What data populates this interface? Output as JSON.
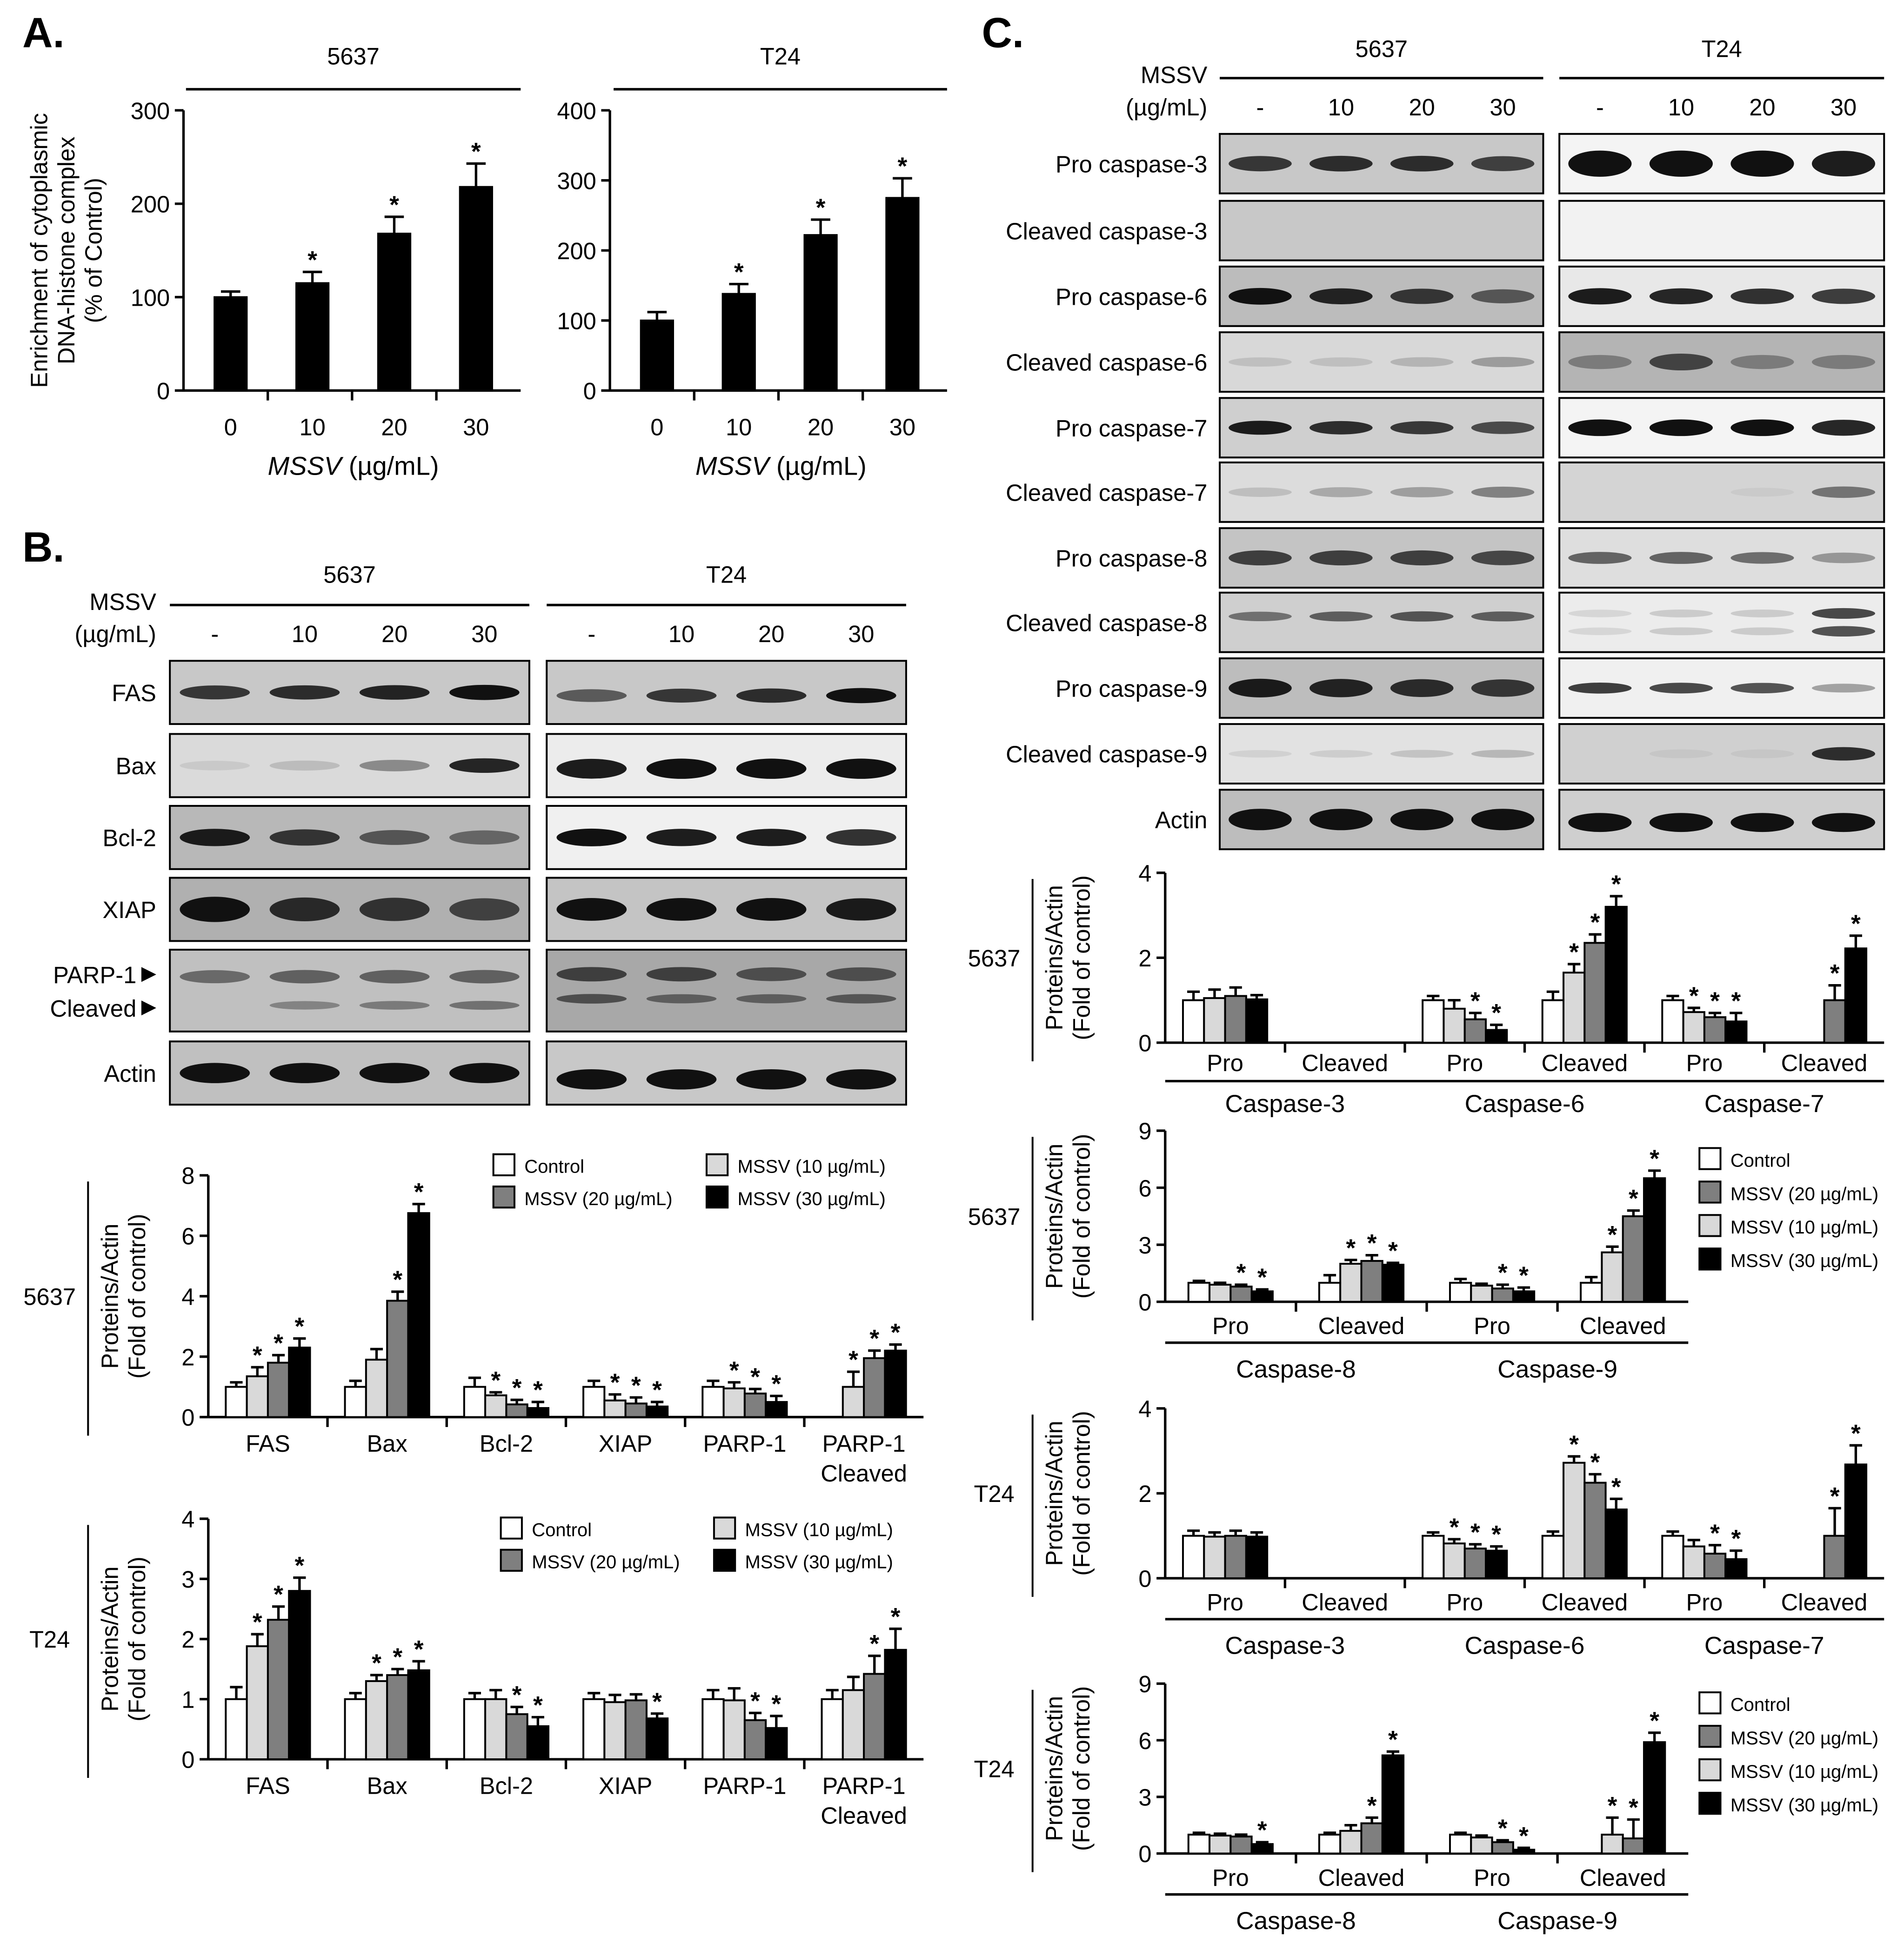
{
  "panels": {
    "a": "A.",
    "b": "B.",
    "c": "C."
  },
  "blot_text": {
    "mssv_label": "MSSV",
    "unit_label": "(µg/mL)",
    "b": {
      "lines": [
        "5637",
        "T24"
      ],
      "doses": [
        "-",
        "10",
        "20",
        "30"
      ],
      "rows": [
        "FAS",
        "Bax",
        "Bcl-2",
        "XIAP",
        "PARP-1",
        "Cleaved",
        "Actin"
      ]
    },
    "c": {
      "lines": [
        "5637",
        "T24"
      ],
      "doses": [
        "-",
        "10",
        "20",
        "30"
      ],
      "rows": [
        "Pro caspase-3",
        "Cleaved caspase-3",
        "Pro caspase-6",
        "Cleaved caspase-6",
        "Pro caspase-7",
        "Cleaved caspase-7",
        "Pro caspase-8",
        "Cleaved caspase-8",
        "Pro caspase-9",
        "Cleaved caspase-9",
        "Actin"
      ]
    }
  },
  "colors": {
    "control": "#ffffff",
    "mssv10": "#d9d9d9",
    "mssv20": "#7f7f7f",
    "mssv30": "#000000"
  },
  "chart_data": [
    {
      "id": "A1",
      "type": "bar",
      "title": "5637",
      "categories": [
        "0",
        "10",
        "20",
        "30"
      ],
      "values": [
        100,
        115,
        168,
        218
      ],
      "errors": [
        6,
        12,
        18,
        25
      ],
      "significant": [
        false,
        true,
        true,
        true
      ],
      "ylim": [
        0,
        300
      ],
      "yticks": [
        0,
        100,
        200,
        300
      ],
      "ylabel": [
        "Enrichment of cytoplasmic",
        "DNA-histone complex",
        "(% of Control)"
      ],
      "xlabel_italic": "MSSV",
      "xlabel_rest": " (µg/mL)"
    },
    {
      "id": "A2",
      "type": "bar",
      "title": "T24",
      "categories": [
        "0",
        "10",
        "20",
        "30"
      ],
      "values": [
        100,
        138,
        222,
        275
      ],
      "errors": [
        12,
        14,
        22,
        28
      ],
      "significant": [
        false,
        true,
        true,
        true
      ],
      "ylim": [
        0,
        400
      ],
      "yticks": [
        0,
        100,
        200,
        300,
        400
      ],
      "xlabel_italic": "MSSV",
      "xlabel_rest": " (µg/mL)"
    },
    {
      "id": "B1",
      "type": "bar",
      "row_label": "5637",
      "ylabel": [
        "Proteins/Actin",
        "(Fold of control)"
      ],
      "ylim": [
        0,
        8
      ],
      "yticks": [
        0,
        2,
        4,
        6,
        8
      ],
      "categories": [
        [
          "FAS"
        ],
        [
          "Bax"
        ],
        [
          "Bcl-2"
        ],
        [
          "XIAP"
        ],
        [
          "PARP-1"
        ],
        [
          "PARP-1",
          "Cleaved"
        ]
      ],
      "legend": [
        {
          "key": "control",
          "label": "Control"
        },
        {
          "key": "mssv10",
          "label": "MSSV (10 µg/mL)"
        },
        {
          "key": "mssv20",
          "label": "MSSV (20 µg/mL)"
        },
        {
          "key": "mssv30",
          "label": "MSSV (30 µg/mL)"
        }
      ],
      "series": [
        {
          "key": "control",
          "values": [
            1,
            1,
            1,
            1,
            1,
            null
          ],
          "errors": [
            0.15,
            0.2,
            0.3,
            0.2,
            0.2,
            0
          ],
          "stars": [
            0,
            0,
            0,
            0,
            0,
            0
          ]
        },
        {
          "key": "mssv10",
          "values": [
            1.35,
            1.9,
            0.72,
            0.55,
            0.95,
            1
          ],
          "errors": [
            0.3,
            0.35,
            0.1,
            0.2,
            0.2,
            0.5
          ],
          "stars": [
            1,
            0,
            1,
            1,
            1,
            1
          ]
        },
        {
          "key": "mssv20",
          "values": [
            1.8,
            3.85,
            0.42,
            0.45,
            0.78,
            1.95
          ],
          "errors": [
            0.25,
            0.3,
            0.15,
            0.2,
            0.15,
            0.25
          ],
          "stars": [
            1,
            1,
            1,
            1,
            1,
            1
          ]
        },
        {
          "key": "mssv30",
          "values": [
            2.3,
            6.75,
            0.3,
            0.35,
            0.5,
            2.2
          ],
          "errors": [
            0.3,
            0.3,
            0.2,
            0.15,
            0.2,
            0.2
          ],
          "stars": [
            1,
            1,
            1,
            1,
            1,
            1
          ]
        }
      ]
    },
    {
      "id": "B2",
      "type": "bar",
      "row_label": "T24",
      "ylabel": [
        "Proteins/Actin",
        "(Fold of control)"
      ],
      "ylim": [
        0,
        4
      ],
      "yticks": [
        0,
        1,
        2,
        3,
        4
      ],
      "categories": [
        [
          "FAS"
        ],
        [
          "Bax"
        ],
        [
          "Bcl-2"
        ],
        [
          "XIAP"
        ],
        [
          "PARP-1"
        ],
        [
          "PARP-1",
          "Cleaved"
        ]
      ],
      "legend": [
        {
          "key": "control",
          "label": "Control"
        },
        {
          "key": "mssv10",
          "label": "MSSV (10 µg/mL)"
        },
        {
          "key": "mssv20",
          "label": "MSSV (20 µg/mL)"
        },
        {
          "key": "mssv30",
          "label": "MSSV (30 µg/mL)"
        }
      ],
      "series": [
        {
          "key": "control",
          "values": [
            1,
            1,
            1,
            1,
            1,
            1
          ],
          "errors": [
            0.2,
            0.1,
            0.1,
            0.1,
            0.15,
            0.15
          ],
          "stars": [
            0,
            0,
            0,
            0,
            0,
            0
          ]
        },
        {
          "key": "mssv10",
          "values": [
            1.88,
            1.3,
            1,
            0.95,
            0.98,
            1.15
          ],
          "errors": [
            0.2,
            0.1,
            0.15,
            0.12,
            0.2,
            0.22
          ],
          "stars": [
            1,
            1,
            0,
            0,
            0,
            0
          ]
        },
        {
          "key": "mssv20",
          "values": [
            2.32,
            1.4,
            0.75,
            0.98,
            0.65,
            1.42
          ],
          "errors": [
            0.22,
            0.1,
            0.12,
            0.1,
            0.12,
            0.3
          ],
          "stars": [
            1,
            1,
            1,
            0,
            1,
            1
          ]
        },
        {
          "key": "mssv30",
          "values": [
            2.8,
            1.48,
            0.55,
            0.68,
            0.52,
            1.82
          ],
          "errors": [
            0.22,
            0.15,
            0.15,
            0.08,
            0.2,
            0.35
          ],
          "stars": [
            1,
            1,
            1,
            1,
            1,
            1
          ]
        }
      ]
    },
    {
      "id": "C1",
      "type": "bar",
      "row_label": "5637",
      "ylabel": [
        "Proteins/Actin",
        "(Fold of control)"
      ],
      "ylim": [
        0,
        4
      ],
      "yticks": [
        0,
        2,
        4
      ],
      "categories": [
        [
          "Pro"
        ],
        [
          "Cleaved"
        ],
        [
          "Pro"
        ],
        [
          "Cleaved"
        ],
        [
          "Pro"
        ],
        [
          "Cleaved"
        ]
      ],
      "groups": [
        "Caspase-3",
        "Caspase-6",
        "Caspase-7"
      ],
      "series": [
        {
          "key": "control",
          "values": [
            1,
            null,
            1,
            1,
            1,
            null
          ],
          "errors": [
            0.2,
            0,
            0.1,
            0.2,
            0.1,
            0
          ],
          "stars": [
            0,
            0,
            0,
            0,
            0,
            0
          ]
        },
        {
          "key": "mssv10",
          "values": [
            1.05,
            null,
            0.8,
            1.65,
            0.72,
            null
          ],
          "errors": [
            0.2,
            0,
            0.2,
            0.2,
            0.1,
            0
          ],
          "stars": [
            0,
            0,
            0,
            1,
            1,
            0
          ]
        },
        {
          "key": "mssv20",
          "values": [
            1.1,
            null,
            0.55,
            2.35,
            0.6,
            1
          ],
          "errors": [
            0.2,
            0,
            0.15,
            0.2,
            0.1,
            0.35
          ],
          "stars": [
            0,
            0,
            1,
            1,
            1,
            1
          ]
        },
        {
          "key": "mssv30",
          "values": [
            1.02,
            null,
            0.3,
            3.2,
            0.5,
            2.22
          ],
          "errors": [
            0.1,
            0,
            0.12,
            0.25,
            0.2,
            0.3
          ],
          "stars": [
            0,
            0,
            1,
            1,
            1,
            1
          ]
        }
      ]
    },
    {
      "id": "C2",
      "type": "bar",
      "row_label": "5637",
      "ylabel": [
        "Proteins/Actin",
        "(Fold of control)"
      ],
      "ylim": [
        0,
        9
      ],
      "yticks": [
        0,
        3,
        6,
        9
      ],
      "categories": [
        [
          "Pro"
        ],
        [
          "Cleaved"
        ],
        [
          "Pro"
        ],
        [
          "Cleaved"
        ]
      ],
      "groups": [
        "Caspase-8",
        "Caspase-9"
      ],
      "legend": [
        {
          "key": "control",
          "label": "Control"
        },
        {
          "key": "mssv20",
          "label": "MSSV (20 µg/mL)"
        },
        {
          "key": "mssv10",
          "label": "MSSV (10 µg/mL)"
        },
        {
          "key": "mssv30",
          "label": "MSSV (30 µg/mL)"
        }
      ],
      "series": [
        {
          "key": "control",
          "values": [
            1,
            1,
            1,
            1
          ],
          "errors": [
            0.1,
            0.4,
            0.2,
            0.3
          ],
          "stars": [
            0,
            0,
            0,
            0
          ]
        },
        {
          "key": "mssv10",
          "values": [
            0.9,
            2,
            0.85,
            2.6
          ],
          "errors": [
            0.1,
            0.2,
            0.1,
            0.3
          ],
          "stars": [
            0,
            1,
            0,
            1
          ]
        },
        {
          "key": "mssv20",
          "values": [
            0.8,
            2.15,
            0.7,
            4.5
          ],
          "errors": [
            0.1,
            0.3,
            0.2,
            0.3
          ],
          "stars": [
            1,
            1,
            1,
            1
          ]
        },
        {
          "key": "mssv30",
          "values": [
            0.55,
            1.95,
            0.55,
            6.5
          ],
          "errors": [
            0.1,
            0.1,
            0.2,
            0.4
          ],
          "stars": [
            1,
            1,
            1,
            1
          ]
        }
      ]
    },
    {
      "id": "C3",
      "type": "bar",
      "row_label": "T24",
      "ylabel": [
        "Proteins/Actin",
        "(Fold of control)"
      ],
      "ylim": [
        0,
        4
      ],
      "yticks": [
        0,
        2,
        4
      ],
      "categories": [
        [
          "Pro"
        ],
        [
          "Cleaved"
        ],
        [
          "Pro"
        ],
        [
          "Cleaved"
        ],
        [
          "Pro"
        ],
        [
          "Cleaved"
        ]
      ],
      "groups": [
        "Caspase-3",
        "Caspase-6",
        "Caspase-7"
      ],
      "series": [
        {
          "key": "control",
          "values": [
            1,
            null,
            1,
            1,
            1,
            null
          ],
          "errors": [
            0.12,
            0,
            0.08,
            0.1,
            0.1,
            0
          ],
          "stars": [
            0,
            0,
            0,
            0,
            0,
            0
          ]
        },
        {
          "key": "mssv10",
          "values": [
            0.98,
            null,
            0.82,
            2.72,
            0.75,
            null
          ],
          "errors": [
            0.1,
            0,
            0.1,
            0.15,
            0.15,
            0
          ],
          "stars": [
            0,
            0,
            1,
            1,
            0,
            0
          ]
        },
        {
          "key": "mssv20",
          "values": [
            1,
            null,
            0.7,
            2.25,
            0.58,
            1
          ],
          "errors": [
            0.12,
            0,
            0.1,
            0.2,
            0.2,
            0.65
          ],
          "stars": [
            0,
            0,
            1,
            1,
            1,
            1
          ]
        },
        {
          "key": "mssv30",
          "values": [
            0.98,
            null,
            0.65,
            1.62,
            0.45,
            2.68
          ],
          "errors": [
            0.1,
            0,
            0.1,
            0.25,
            0.2,
            0.45
          ],
          "stars": [
            0,
            0,
            1,
            1,
            1,
            1
          ]
        }
      ]
    },
    {
      "id": "C4",
      "type": "bar",
      "row_label": "T24",
      "ylabel": [
        "Proteins/Actin",
        "(Fold of control)"
      ],
      "ylim": [
        0,
        9
      ],
      "yticks": [
        0,
        3,
        6,
        9
      ],
      "categories": [
        [
          "Pro"
        ],
        [
          "Cleaved"
        ],
        [
          "Pro"
        ],
        [
          "Cleaved"
        ]
      ],
      "groups": [
        "Caspase-8",
        "Caspase-9"
      ],
      "legend": [
        {
          "key": "control",
          "label": "Control"
        },
        {
          "key": "mssv20",
          "label": "MSSV (20 µg/mL)"
        },
        {
          "key": "mssv10",
          "label": "MSSV (10 µg/mL)"
        },
        {
          "key": "mssv30",
          "label": "MSSV (30 µg/mL)"
        }
      ],
      "series": [
        {
          "key": "control",
          "values": [
            1,
            1,
            1,
            null
          ],
          "errors": [
            0.1,
            0.1,
            0.1,
            0
          ],
          "stars": [
            0,
            0,
            0,
            0
          ]
        },
        {
          "key": "mssv10",
          "values": [
            0.95,
            1.2,
            0.85,
            1
          ],
          "errors": [
            0.1,
            0.3,
            0.1,
            0.9
          ],
          "stars": [
            0,
            0,
            0,
            1
          ]
        },
        {
          "key": "mssv20",
          "values": [
            0.9,
            1.6,
            0.6,
            0.8
          ],
          "errors": [
            0.1,
            0.3,
            0.1,
            1
          ],
          "stars": [
            0,
            1,
            1,
            1
          ]
        },
        {
          "key": "mssv30",
          "values": [
            0.5,
            5.2,
            0.2,
            5.9
          ],
          "errors": [
            0.1,
            0.2,
            0.1,
            0.5
          ],
          "stars": [
            1,
            1,
            1,
            1
          ]
        }
      ]
    }
  ]
}
